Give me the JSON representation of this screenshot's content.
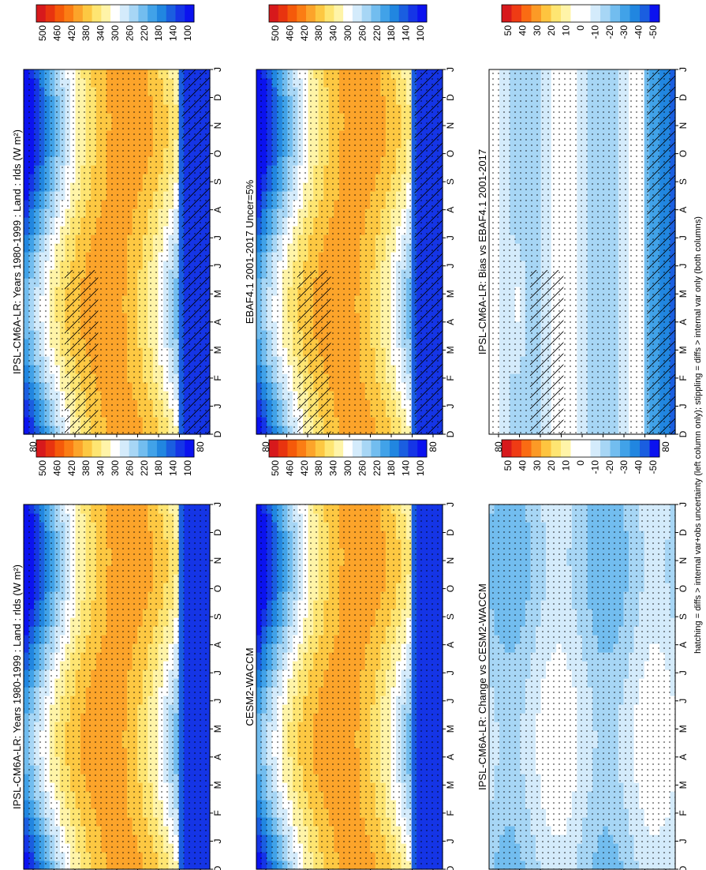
{
  "footnote": "hatching = diffs > internal var+obs uncertainty (left column only); stippling = diffs > internal var only (both columns)",
  "colors": {
    "abs": [
      "#d7191c",
      "#e8340f",
      "#f55a0a",
      "#fb7d14",
      "#fca42a",
      "#fdc842",
      "#fee572",
      "#fff4a8",
      "#ffffff",
      "#d4ebfb",
      "#a7d6f5",
      "#72bdef",
      "#41a2e8",
      "#2186e0",
      "#1a5ee0",
      "#1535e6",
      "#0b12ef"
    ],
    "diff": [
      "#d7191c",
      "#ef3b14",
      "#fa6b13",
      "#fc9a26",
      "#fec43f",
      "#fee572",
      "#fff4a8",
      "#ffffff",
      "#ffffff",
      "#d4ebfb",
      "#a7d6f5",
      "#72bdef",
      "#41a2e8",
      "#2186e0",
      "#1a5ee0",
      "#0b12ef"
    ]
  },
  "chart_data": [
    {
      "type": "heatmap",
      "title": "IPSL-CM6A-LR: Years 1980-1999 : Land : rlds (W m²)",
      "x": [
        "D",
        "J",
        "F",
        "M",
        "A",
        "M",
        "J",
        "J",
        "A",
        "S",
        "O",
        "N",
        "D",
        "J"
      ],
      "y_ticks": [
        "80",
        "60",
        "°N",
        "20",
        "0",
        "20",
        "°S",
        "60",
        "80"
      ],
      "colorbar_ticks": [
        "500",
        "460",
        "420",
        "380",
        "340",
        "300",
        "260",
        "220",
        "180",
        "140",
        "100"
      ],
      "colorbar_range": [
        520,
        80
      ],
      "hatching": true,
      "stippling": true
    },
    {
      "type": "heatmap",
      "title": "EBAF4.1 2001-2017 Uncer=5%",
      "x": [
        "D",
        "J",
        "F",
        "M",
        "A",
        "M",
        "J",
        "J",
        "A",
        "S",
        "O",
        "N",
        "D",
        "J"
      ],
      "y_ticks": [
        "80",
        "60",
        "°N",
        "20",
        "0",
        "20",
        "°S",
        "60",
        "80"
      ],
      "colorbar_ticks": [
        "500",
        "460",
        "420",
        "380",
        "340",
        "300",
        "260",
        "220",
        "180",
        "140",
        "100"
      ],
      "colorbar_range": [
        520,
        80
      ],
      "hatching": true,
      "stippling": true
    },
    {
      "type": "heatmap",
      "title": "IPSL-CM6A-LR: Bias vs EBAF4.1 2001-2017",
      "x": [
        "D",
        "J",
        "F",
        "M",
        "A",
        "M",
        "J",
        "J",
        "A",
        "S",
        "O",
        "N",
        "D",
        "J"
      ],
      "y_ticks": [
        "80",
        "60",
        "°N",
        "20",
        "0",
        "20",
        "°S",
        "60",
        "80"
      ],
      "colorbar_ticks": [
        "50",
        "40",
        "30",
        "20",
        "10",
        "0",
        "-10",
        "-20",
        "-30",
        "-40",
        "-50"
      ],
      "colorbar_range": [
        60,
        -60
      ],
      "hatching": true,
      "stippling": true
    },
    {
      "type": "heatmap",
      "title": "IPSL-CM6A-LR: Years 1980-1999 : Land : rlds (W m²)",
      "x": [
        "D",
        "J",
        "F",
        "M",
        "A",
        "M",
        "J",
        "J",
        "A",
        "S",
        "O",
        "N",
        "D",
        "J"
      ],
      "y_ticks": [
        "80",
        "60",
        "°N",
        "20",
        "0",
        "20",
        "°S",
        "60",
        "80"
      ],
      "colorbar_ticks": [
        "500",
        "460",
        "420",
        "380",
        "340",
        "300",
        "260",
        "220",
        "180",
        "140",
        "100"
      ],
      "colorbar_range": [
        520,
        80
      ],
      "hatching": false,
      "stippling": true
    },
    {
      "type": "heatmap",
      "title": "CESM2-WACCM",
      "x": [
        "D",
        "J",
        "F",
        "M",
        "A",
        "M",
        "J",
        "J",
        "A",
        "S",
        "O",
        "N",
        "D",
        "J"
      ],
      "y_ticks": [
        "80",
        "60",
        "°N",
        "20",
        "0",
        "20",
        "°S",
        "60",
        "80"
      ],
      "colorbar_ticks": [
        "500",
        "460",
        "420",
        "380",
        "340",
        "300",
        "260",
        "220",
        "180",
        "140",
        "100"
      ],
      "colorbar_range": [
        520,
        80
      ],
      "hatching": false,
      "stippling": true
    },
    {
      "type": "heatmap",
      "title": "IPSL-CM6A-LR: Change vs CESM2-WACCM",
      "x": [
        "D",
        "J",
        "F",
        "M",
        "A",
        "M",
        "J",
        "J",
        "A",
        "S",
        "O",
        "N",
        "D",
        "J"
      ],
      "y_ticks": [
        "80",
        "60",
        "°N",
        "20",
        "0",
        "20",
        "°S",
        "60",
        "80"
      ],
      "colorbar_ticks": [
        "50",
        "40",
        "30",
        "20",
        "10",
        "0",
        "-10",
        "-20",
        "-30",
        "-40",
        "-50"
      ],
      "colorbar_range": [
        60,
        -60
      ],
      "hatching": false,
      "stippling": true
    }
  ]
}
